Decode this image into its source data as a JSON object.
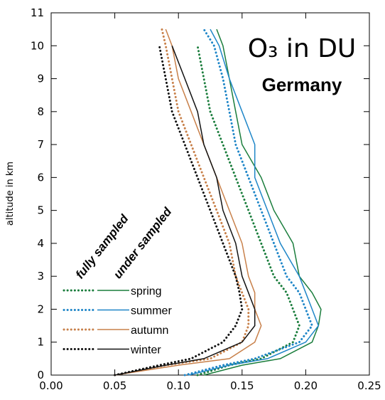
{
  "chart_data": {
    "type": "line",
    "title": "O₃ in DU",
    "subtitle": "Germany",
    "y_label": "altitude in km",
    "legend_titles": [
      "fully sampled",
      "under sampled"
    ],
    "xlim": [
      0,
      0.25
    ],
    "xticks": [
      {
        "value": 0,
        "label": "0.00"
      },
      {
        "value": 0.05,
        "label": "0.05"
      },
      {
        "value": 0.1,
        "label": "0.10"
      },
      {
        "value": 0.15,
        "label": "0.15"
      },
      {
        "value": 0.2,
        "label": "0.20"
      },
      {
        "value": 0.25,
        "label": "0.25"
      }
    ],
    "ylim": [
      0,
      11
    ],
    "yticks": [
      0,
      1,
      2,
      3,
      4,
      5,
      6,
      7,
      8,
      9,
      10,
      11
    ],
    "y": [
      0,
      0.3,
      0.5,
      1,
      1.5,
      2,
      2.5,
      3,
      4,
      5,
      6,
      7,
      8,
      9,
      10,
      10.5
    ],
    "series": [
      {
        "name": "spring",
        "color": "#1a7d3c",
        "values": [
          0.12,
          0.15,
          0.18,
          0.205,
          0.21,
          0.212,
          0.205,
          0.195,
          0.19,
          0.175,
          0.165,
          0.15,
          0.145,
          0.14,
          0.135,
          0.13
        ],
        "under_values": [
          0.115,
          0.14,
          0.165,
          0.19,
          0.195,
          0.19,
          0.185,
          0.175,
          0.165,
          0.155,
          0.145,
          0.135,
          0.125,
          0.12,
          0.115,
          null
        ]
      },
      {
        "name": "summer",
        "color": "#1f86c8",
        "values": [
          0.108,
          0.14,
          0.17,
          0.2,
          0.21,
          0.205,
          0.2,
          0.195,
          0.18,
          0.17,
          0.16,
          0.16,
          0.15,
          0.14,
          0.132,
          0.125
        ],
        "under_values": [
          0.105,
          0.135,
          0.16,
          0.195,
          0.205,
          0.2,
          0.195,
          0.185,
          0.175,
          0.165,
          0.155,
          0.145,
          0.14,
          0.135,
          0.128,
          0.12
        ]
      },
      {
        "name": "autumn",
        "color": "#c8804a",
        "values": [
          0.05,
          0.1,
          0.14,
          0.16,
          0.165,
          0.16,
          0.16,
          0.155,
          0.15,
          0.14,
          0.13,
          0.12,
          0.11,
          0.1,
          0.095,
          0.09
        ],
        "under_values": [
          0.05,
          0.09,
          0.125,
          0.15,
          0.155,
          0.155,
          0.15,
          0.145,
          0.14,
          0.13,
          0.12,
          0.11,
          0.1,
          0.095,
          0.09,
          0.087
        ]
      },
      {
        "name": "winter",
        "color": "#111111",
        "values": [
          0.05,
          0.09,
          0.12,
          0.15,
          0.16,
          0.16,
          0.155,
          0.15,
          0.145,
          0.135,
          0.13,
          0.12,
          0.115,
          0.105,
          0.095,
          null
        ],
        "under_values": [
          0.05,
          0.085,
          0.11,
          0.135,
          0.145,
          0.15,
          0.148,
          0.145,
          0.135,
          0.125,
          0.115,
          0.105,
          0.095,
          0.09,
          0.085,
          null
        ]
      }
    ]
  }
}
